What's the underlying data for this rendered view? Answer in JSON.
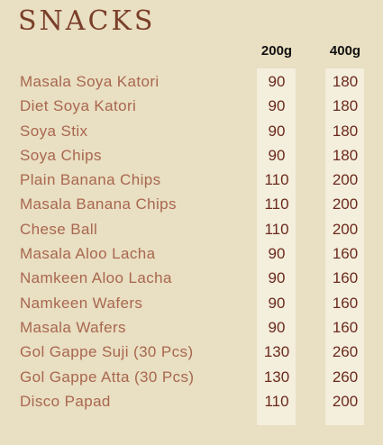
{
  "title": "SNACKS",
  "columns": [
    "200g",
    "400g"
  ],
  "items": [
    {
      "name": "Masala Soya Katori",
      "price_200g": "90",
      "price_400g": "180"
    },
    {
      "name": "Diet Soya Katori",
      "price_200g": "90",
      "price_400g": "180"
    },
    {
      "name": "Soya Stix",
      "price_200g": "90",
      "price_400g": "180"
    },
    {
      "name": "Soya Chips",
      "price_200g": "90",
      "price_400g": "180"
    },
    {
      "name": "Plain Banana Chips",
      "price_200g": "110",
      "price_400g": "200"
    },
    {
      "name": "Masala Banana Chips",
      "price_200g": "110",
      "price_400g": "200"
    },
    {
      "name": "Chese Ball",
      "price_200g": "110",
      "price_400g": "200"
    },
    {
      "name": "Masala Aloo Lacha",
      "price_200g": "90",
      "price_400g": "160"
    },
    {
      "name": "Namkeen Aloo Lacha",
      "price_200g": "90",
      "price_400g": "160"
    },
    {
      "name": "Namkeen Wafers",
      "price_200g": "90",
      "price_400g": "160"
    },
    {
      "name": "Masala Wafers",
      "price_200g": "90",
      "price_400g": "160"
    },
    {
      "name": "Gol Gappe Suji (30 Pcs)",
      "price_200g": "130",
      "price_400g": "260"
    },
    {
      "name": "Gol Gappe Atta (30 Pcs)",
      "price_200g": "130",
      "price_400g": "260"
    },
    {
      "name": "Disco Papad",
      "price_200g": "110",
      "price_400g": "200"
    }
  ],
  "colors": {
    "background": "#e9dfc2",
    "column_background": "#f4eedd",
    "title": "#7a3f2a",
    "item_name": "#a8674f",
    "price": "#6b2a1c",
    "header": "#111111"
  }
}
